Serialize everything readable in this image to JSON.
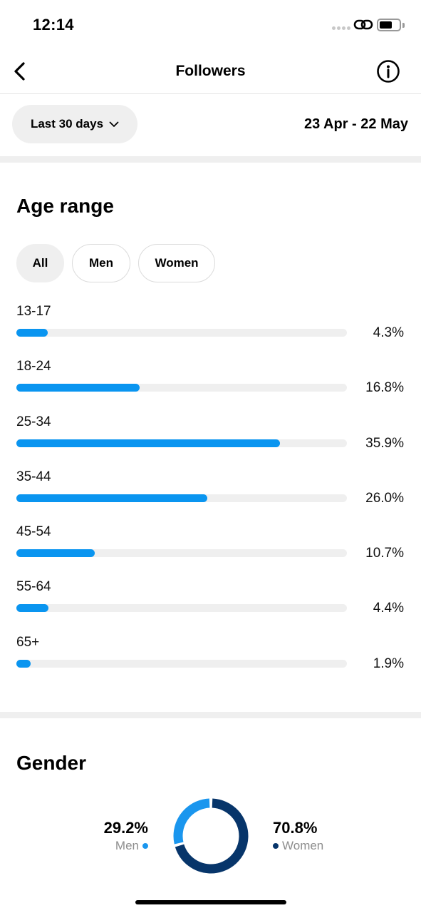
{
  "status_bar": {
    "time": "12:14"
  },
  "nav": {
    "title": "Followers"
  },
  "date_filter": {
    "period_label": "Last 30 days",
    "date_range": "23 Apr - 22 May"
  },
  "age_section": {
    "title": "Age range",
    "filters": [
      {
        "label": "All",
        "selected": true
      },
      {
        "label": "Men",
        "selected": false
      },
      {
        "label": "Women",
        "selected": false
      }
    ],
    "rows": [
      {
        "label": "13-17",
        "value": "4.3%",
        "percent": 4.3
      },
      {
        "label": "18-24",
        "value": "16.8%",
        "percent": 16.8
      },
      {
        "label": "25-34",
        "value": "35.9%",
        "percent": 35.9
      },
      {
        "label": "35-44",
        "value": "26.0%",
        "percent": 26.0
      },
      {
        "label": "45-54",
        "value": "10.7%",
        "percent": 10.7
      },
      {
        "label": "55-64",
        "value": "4.4%",
        "percent": 4.4
      },
      {
        "label": "65+",
        "value": "1.9%",
        "percent": 1.9
      }
    ],
    "bar_color": "#0a95f0",
    "track_color": "#efefef"
  },
  "gender_section": {
    "title": "Gender",
    "men": {
      "value": "29.2%",
      "label": "Men",
      "percent": 29.2,
      "color": "#1a96ee"
    },
    "women": {
      "value": "70.8%",
      "label": "Women",
      "percent": 70.8,
      "color": "#07356a"
    }
  }
}
